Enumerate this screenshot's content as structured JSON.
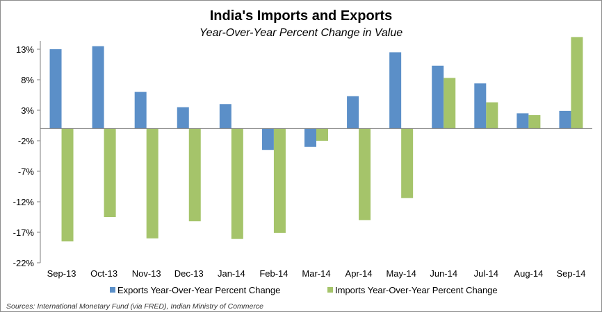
{
  "chart_data": {
    "type": "bar",
    "title": "India's Imports and Exports",
    "subtitle": "Year-Over-Year Percent Change in Value",
    "categories": [
      "Sep-13",
      "Oct-13",
      "Nov-13",
      "Dec-13",
      "Jan-14",
      "Feb-14",
      "Mar-14",
      "Apr-14",
      "May-14",
      "Jun-14",
      "Jul-14",
      "Aug-14",
      "Sep-14"
    ],
    "series": [
      {
        "name": "Exports Year-Over-Year Percent Change",
        "color": "#5B8FC8",
        "values": [
          13.0,
          13.5,
          6.0,
          3.5,
          4.0,
          -3.5,
          -3.0,
          5.3,
          12.5,
          10.3,
          7.4,
          2.5,
          2.9
        ]
      },
      {
        "name": "Imports Year-Over-Year Percent Change",
        "color": "#A5C46A",
        "values": [
          -18.5,
          -14.5,
          -18.0,
          -15.2,
          -18.1,
          -17.1,
          -2.0,
          -15.0,
          -11.4,
          8.3,
          4.3,
          2.2,
          15.0
        ]
      }
    ],
    "y_ticks": [
      "13%",
      "8%",
      "3%",
      "-2%",
      "-7%",
      "-12%",
      "-17%",
      "-22%"
    ],
    "y_tick_values": [
      13,
      8,
      3,
      -2,
      -7,
      -12,
      -17,
      -22
    ],
    "ylim": [
      -22,
      15
    ],
    "grid": false,
    "legend_position": "bottom",
    "source": "Sources: International Monetary Fund (via FRED), Indian Ministry of Commerce"
  }
}
